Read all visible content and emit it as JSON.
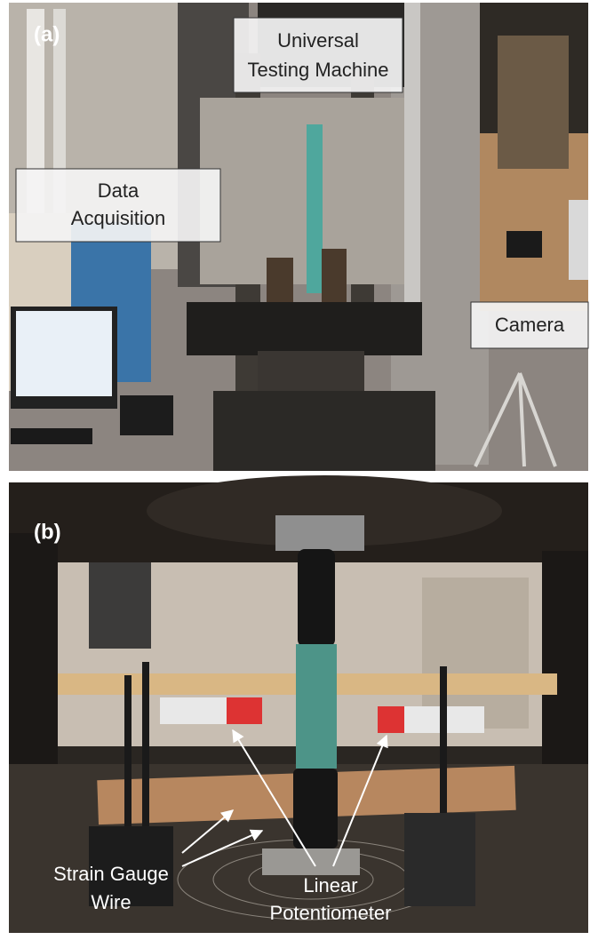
{
  "panels": [
    {
      "label": "(a)",
      "annotations": [
        {
          "lines": [
            "Universal",
            "Testing Machine"
          ]
        },
        {
          "lines": [
            "Data",
            "Acquisition"
          ]
        },
        {
          "lines": [
            "Camera"
          ]
        }
      ]
    },
    {
      "label": "(b)",
      "annotations": [
        {
          "lines": [
            "Strain Gauge",
            "Wire"
          ]
        },
        {
          "lines": [
            "Linear",
            "Potentiometer"
          ]
        }
      ]
    }
  ]
}
